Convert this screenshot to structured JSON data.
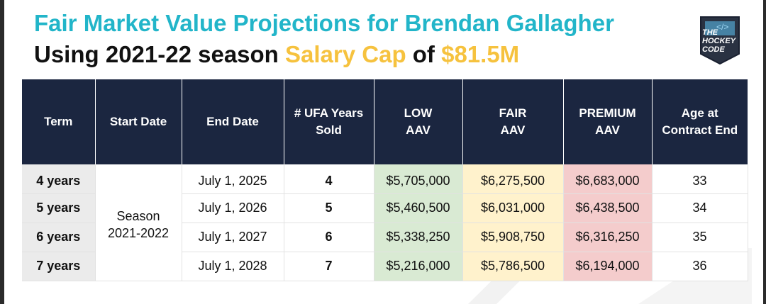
{
  "title": {
    "line1": "Fair Market Value Projections for Brendan Gallagher",
    "line2_prefix": "Using 2021-22 season ",
    "line2_highlight1": "Salary Cap",
    "line2_middle": " of ",
    "line2_highlight2": "$81.5M"
  },
  "logo": {
    "line1": "THE",
    "line2": "HOCKEY",
    "line3": "CODE",
    "icon": "hockey-code-logo-icon"
  },
  "table": {
    "headers": [
      {
        "l1": "Term",
        "l2": ""
      },
      {
        "l1": "Start Date",
        "l2": ""
      },
      {
        "l1": "End Date",
        "l2": ""
      },
      {
        "l1": "# UFA Years",
        "l2": "Sold"
      },
      {
        "l1": "LOW",
        "l2": "AAV"
      },
      {
        "l1": "FAIR",
        "l2": "AAV"
      },
      {
        "l1": "PREMIUM",
        "l2": "AAV"
      },
      {
        "l1": "Age at",
        "l2": "Contract End"
      }
    ],
    "start_date": {
      "l1": "Season",
      "l2": "2021-2022"
    },
    "rows": [
      {
        "term": "4 years",
        "end": "July 1, 2025",
        "ufa": "4",
        "low": "$5,705,000",
        "fair": "$6,275,500",
        "premium": "$6,683,000",
        "age": "33"
      },
      {
        "term": "5 years",
        "end": "July 1, 2026",
        "ufa": "5",
        "low": "$5,460,500",
        "fair": "$6,031,000",
        "premium": "$6,438,500",
        "age": "34"
      },
      {
        "term": "6 years",
        "end": "July 1, 2027",
        "ufa": "6",
        "low": "$5,338,250",
        "fair": "$5,908,750",
        "premium": "$6,316,250",
        "age": "35"
      },
      {
        "term": "7 years",
        "end": "July 1, 2028",
        "ufa": "7",
        "low": "$5,216,000",
        "fair": "$5,786,500",
        "premium": "$6,194,000",
        "age": "36"
      }
    ]
  },
  "colors": {
    "title_accent": "#22b5c9",
    "highlight": "#f6c23e",
    "header_bg": "#1b2640",
    "low_bg": "#d9ead3",
    "fair_bg": "#fff2cc",
    "premium_bg": "#f4cccc"
  }
}
